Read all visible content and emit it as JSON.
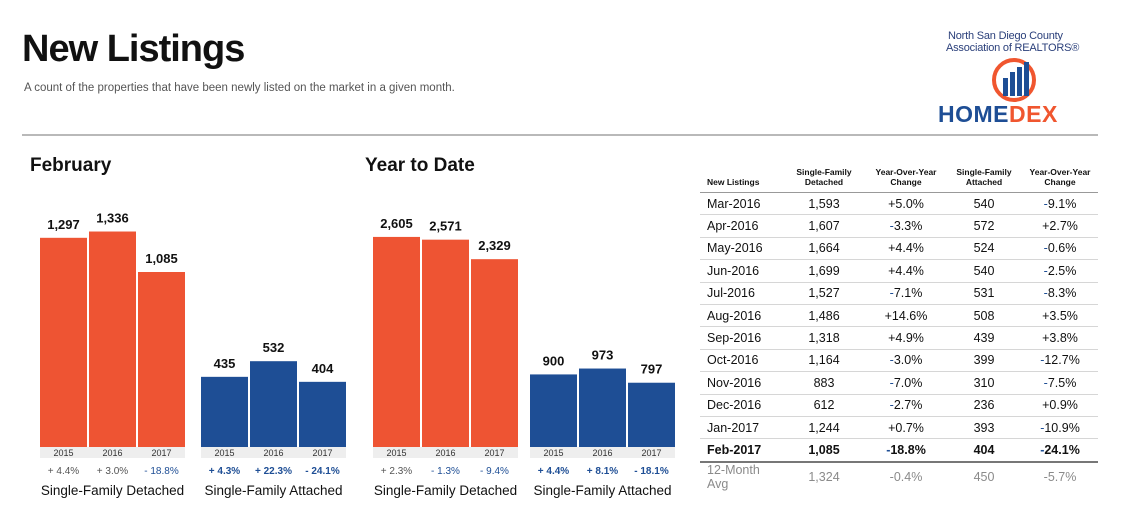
{
  "header": {
    "title": "New Listings",
    "subtitle": "A count of the properties that have been newly listed on the market in a given month."
  },
  "logo": {
    "line1": "North San Diego County",
    "line2": "Association of REALTORS®",
    "word_home": "HOME",
    "word_dex": "DEX"
  },
  "colors": {
    "detached": "#ee5433",
    "attached": "#1e4e95",
    "positive_change": "#555555",
    "negative_change": "#1e4e95"
  },
  "chart_data": [
    {
      "type": "bar",
      "title": "February",
      "groups": [
        {
          "name": "Single-Family Detached",
          "color": "#ee5433",
          "categories": [
            "2015",
            "2016",
            "2017"
          ],
          "values": [
            1297,
            1336,
            1085
          ],
          "value_labels": [
            "1,297",
            "1,336",
            "1,085"
          ],
          "changes": [
            "+ 4.4%",
            "+ 3.0%",
            "- 18.8%"
          ]
        },
        {
          "name": "Single-Family Attached",
          "color": "#1e4e95",
          "categories": [
            "2015",
            "2016",
            "2017"
          ],
          "values": [
            435,
            532,
            404
          ],
          "value_labels": [
            "435",
            "532",
            "404"
          ],
          "changes": [
            "+ 4.3%",
            "+ 22.3%",
            "- 24.1%"
          ]
        }
      ],
      "ylim": [
        0,
        1400
      ]
    },
    {
      "type": "bar",
      "title": "Year to Date",
      "groups": [
        {
          "name": "Single-Family Detached",
          "color": "#ee5433",
          "categories": [
            "2015",
            "2016",
            "2017"
          ],
          "values": [
            2605,
            2571,
            2329
          ],
          "value_labels": [
            "2,605",
            "2,571",
            "2,329"
          ],
          "changes": [
            "+ 2.3%",
            "- 1.3%",
            "- 9.4%"
          ]
        },
        {
          "name": "Single-Family Attached",
          "color": "#1e4e95",
          "categories": [
            "2015",
            "2016",
            "2017"
          ],
          "values": [
            900,
            973,
            797
          ],
          "value_labels": [
            "900",
            "973",
            "797"
          ],
          "changes": [
            "+ 4.4%",
            "+ 8.1%",
            "- 18.1%"
          ]
        }
      ],
      "ylim": [
        0,
        2800
      ]
    },
    {
      "type": "table",
      "columns": [
        "New Listings",
        "Single-Family Detached",
        "Year-Over-Year Change",
        "Single-Family Attached",
        "Year-Over-Year Change"
      ],
      "rows": [
        [
          "Mar-2016",
          "1,593",
          "+5.0%",
          "540",
          "-9.1%"
        ],
        [
          "Apr-2016",
          "1,607",
          "-3.3%",
          "572",
          "+2.7%"
        ],
        [
          "May-2016",
          "1,664",
          "+4.4%",
          "524",
          "-0.6%"
        ],
        [
          "Jun-2016",
          "1,699",
          "+4.4%",
          "540",
          "-2.5%"
        ],
        [
          "Jul-2016",
          "1,527",
          "-7.1%",
          "531",
          "-8.3%"
        ],
        [
          "Aug-2016",
          "1,486",
          "+14.6%",
          "508",
          "+3.5%"
        ],
        [
          "Sep-2016",
          "1,318",
          "+4.9%",
          "439",
          "+3.8%"
        ],
        [
          "Oct-2016",
          "1,164",
          "-3.0%",
          "399",
          "-12.7%"
        ],
        [
          "Nov-2016",
          "883",
          "-7.0%",
          "310",
          "-7.5%"
        ],
        [
          "Dec-2016",
          "612",
          "-2.7%",
          "236",
          "+0.9%"
        ],
        [
          "Jan-2017",
          "1,244",
          "+0.7%",
          "393",
          "-10.9%"
        ],
        [
          "Feb-2017",
          "1,085",
          "-18.8%",
          "404",
          "-24.1%"
        ]
      ],
      "average_row": [
        "12-Month Avg",
        "1,324",
        "-0.4%",
        "450",
        "-5.7%"
      ]
    }
  ]
}
